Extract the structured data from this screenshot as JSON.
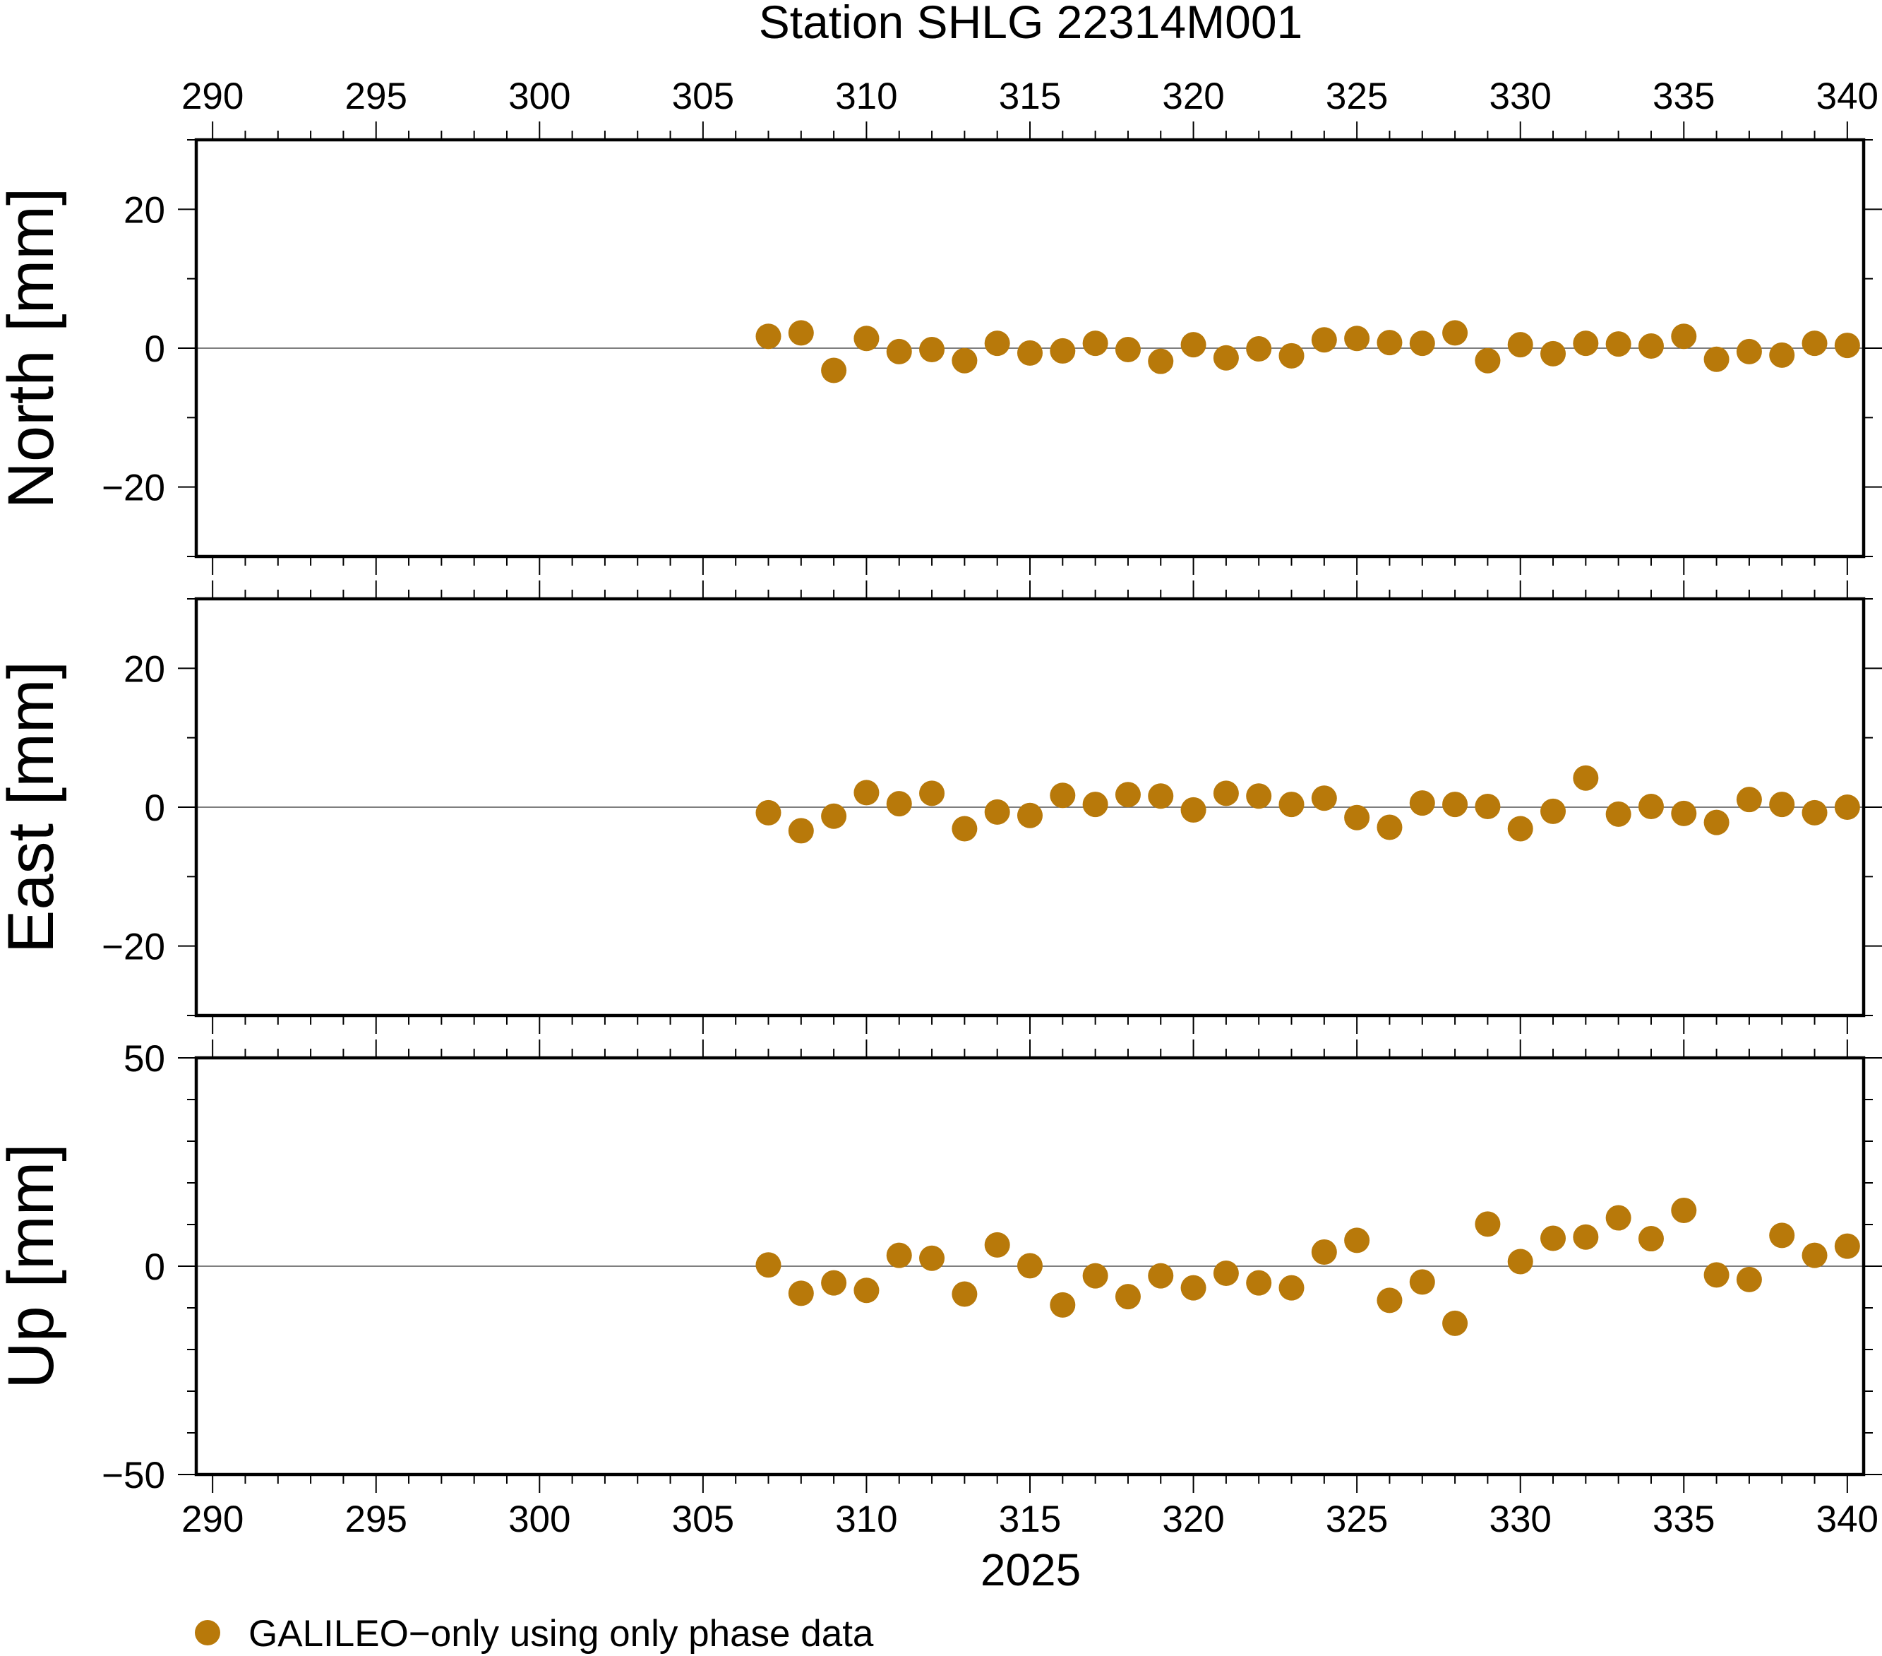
{
  "title": "Station SHLG 22314M001",
  "xlabel": "2025",
  "marker_color": "#b8790a",
  "legend": {
    "label": "GALILEO−only using only phase data"
  },
  "chart_data": [
    {
      "type": "scatter",
      "ylabel": "North [mm]",
      "xlim": [
        289.5,
        340.5
      ],
      "ylim": [
        -30,
        30
      ],
      "yticks": [
        -20,
        0,
        20
      ],
      "ytick_labels": [
        "−20",
        "0",
        "20"
      ],
      "x": [
        307,
        308,
        309,
        310,
        311,
        312,
        313,
        314,
        315,
        316,
        317,
        318,
        319,
        320,
        321,
        322,
        323,
        324,
        325,
        326,
        327,
        328,
        329,
        330,
        331,
        332,
        333,
        334,
        335,
        336,
        337,
        338,
        339,
        340
      ],
      "y": [
        1.7,
        2.2,
        -3.2,
        1.4,
        -0.5,
        -0.2,
        -1.8,
        0.7,
        -0.7,
        -0.4,
        0.7,
        -0.2,
        -1.9,
        0.5,
        -1.4,
        -0.1,
        -1.1,
        1.2,
        1.4,
        0.8,
        0.7,
        2.2,
        -1.8,
        0.5,
        -0.8,
        0.7,
        0.6,
        0.3,
        1.7,
        -1.6,
        -0.5,
        -1.0,
        0.7,
        0.4
      ]
    },
    {
      "type": "scatter",
      "ylabel": "East [mm]",
      "xlim": [
        289.5,
        340.5
      ],
      "ylim": [
        -30,
        30
      ],
      "yticks": [
        -20,
        0,
        20
      ],
      "ytick_labels": [
        "−20",
        "0",
        "20"
      ],
      "x": [
        307,
        308,
        309,
        310,
        311,
        312,
        313,
        314,
        315,
        316,
        317,
        318,
        319,
        320,
        321,
        322,
        323,
        324,
        325,
        326,
        327,
        328,
        329,
        330,
        331,
        332,
        333,
        334,
        335,
        336,
        337,
        338,
        339,
        340
      ],
      "y": [
        -0.8,
        -3.4,
        -1.3,
        2.1,
        0.5,
        2.0,
        -3.1,
        -0.7,
        -1.2,
        1.7,
        0.4,
        1.8,
        1.6,
        -0.4,
        2.0,
        1.6,
        0.4,
        1.3,
        -1.5,
        -2.9,
        0.6,
        0.4,
        0.1,
        -3.1,
        -0.6,
        4.2,
        -1.0,
        0.1,
        -0.9,
        -2.2,
        1.1,
        0.4,
        -0.8,
        0.0
      ]
    },
    {
      "type": "scatter",
      "ylabel": "Up [mm]",
      "xlim": [
        289.5,
        340.5
      ],
      "ylim": [
        -50,
        50
      ],
      "yticks": [
        -50,
        0,
        50
      ],
      "ytick_labels": [
        "−50",
        "0",
        "50"
      ],
      "x": [
        307,
        308,
        309,
        310,
        311,
        312,
        313,
        314,
        315,
        316,
        317,
        318,
        319,
        320,
        321,
        322,
        323,
        324,
        325,
        326,
        327,
        328,
        329,
        330,
        331,
        332,
        333,
        334,
        335,
        336,
        337,
        338,
        339,
        340
      ],
      "y": [
        0.3,
        -6.5,
        -4.0,
        -5.8,
        2.6,
        1.9,
        -6.7,
        5.1,
        0.1,
        -9.3,
        -2.3,
        -7.3,
        -2.3,
        -5.2,
        -1.7,
        -4.0,
        -5.2,
        3.4,
        6.2,
        -8.2,
        -3.8,
        -13.7,
        10.1,
        1.1,
        6.7,
        7.0,
        11.6,
        6.6,
        13.4,
        -2.1,
        -3.2,
        7.4,
        2.6,
        4.8
      ]
    }
  ],
  "x_axis": {
    "ticks": [
      290,
      295,
      300,
      305,
      310,
      315,
      320,
      325,
      330,
      335,
      340
    ],
    "tick_labels": [
      "290",
      "295",
      "300",
      "305",
      "310",
      "315",
      "320",
      "325",
      "330",
      "335",
      "340"
    ]
  }
}
